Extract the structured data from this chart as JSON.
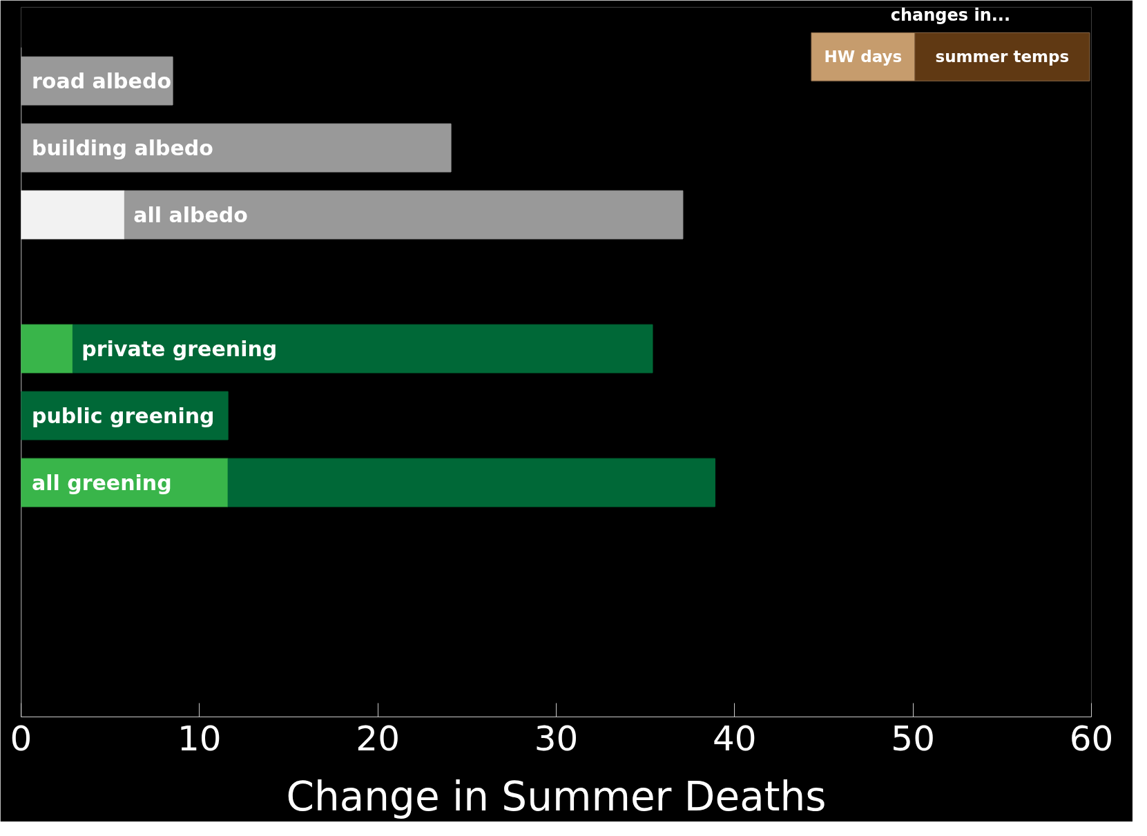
{
  "chart_data": {
    "type": "bar",
    "orientation": "horizontal",
    "stacked": true,
    "categories": [
      "road albedo",
      "building albedo",
      "all albedo",
      null,
      "private greening",
      "public greening",
      "all greening",
      null,
      null,
      null
    ],
    "series": [
      {
        "name": "HW days",
        "color": "#c69c6d",
        "colors": [
          "#f2f2f2",
          "#f2f2f2",
          "#f2f2f2",
          "#f2f2f2",
          "#39b54a",
          "#39b54a",
          "#39b54a",
          "#39b54a",
          "#39b54a",
          "#39b54a"
        ],
        "values": [
          null,
          null,
          5.8,
          null,
          2.9,
          null,
          11.6,
          null,
          null,
          null
        ]
      },
      {
        "name": "summer temps",
        "color": "#603913",
        "colors": [
          "#999999",
          "#999999",
          "#999999",
          "#999999",
          "#006837",
          "#006837",
          "#006837",
          "#006837",
          "#006837",
          "#006837"
        ],
        "values": [
          8.5,
          24.1,
          31.3,
          null,
          32.5,
          11.6,
          27.3,
          null,
          null,
          null
        ]
      }
    ],
    "xlabel": "Change in Summer Deaths",
    "legend_title": "changes in...",
    "legend": "top right",
    "xlim": [
      0,
      60
    ],
    "xticks": [
      0,
      10,
      20,
      30,
      40,
      50,
      60
    ],
    "grid": false
  }
}
